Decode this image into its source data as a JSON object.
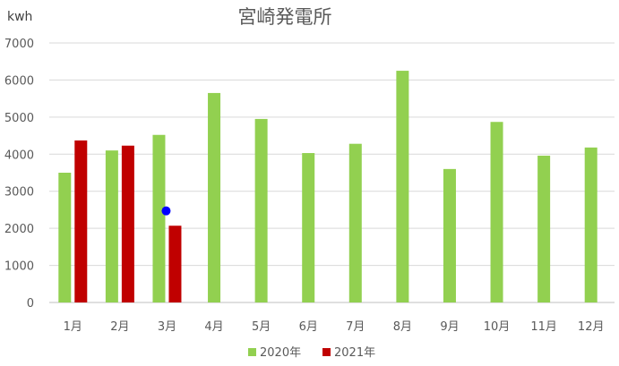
{
  "chart_data": {
    "type": "bar",
    "title": "宮崎発電所",
    "ylabel": "kwh",
    "xlabel": "",
    "categories": [
      "1月",
      "2月",
      "3月",
      "4月",
      "5月",
      "6月",
      "7月",
      "8月",
      "9月",
      "10月",
      "11月",
      "12月"
    ],
    "series": [
      {
        "name": "2020年",
        "color": "#92d050",
        "values": [
          3500,
          4100,
          4520,
          5650,
          4950,
          4030,
          4280,
          6250,
          3600,
          4870,
          3960,
          4180
        ]
      },
      {
        "name": "2021年",
        "color": "#c00000",
        "values": [
          4370,
          4230,
          2070,
          null,
          null,
          null,
          null,
          null,
          null,
          null,
          null,
          null
        ]
      }
    ],
    "extra_points": [
      {
        "category": "3月",
        "value": 2470,
        "color": "#0000ff"
      }
    ],
    "ylim": [
      0,
      7000
    ],
    "yticks": [
      "0",
      "1000",
      "2000",
      "3000",
      "4000",
      "5000",
      "6000",
      "7000"
    ],
    "ytick_values": [
      0,
      1000,
      2000,
      3000,
      4000,
      5000,
      6000,
      7000
    ],
    "grid": true,
    "legend_position": "bottom"
  }
}
